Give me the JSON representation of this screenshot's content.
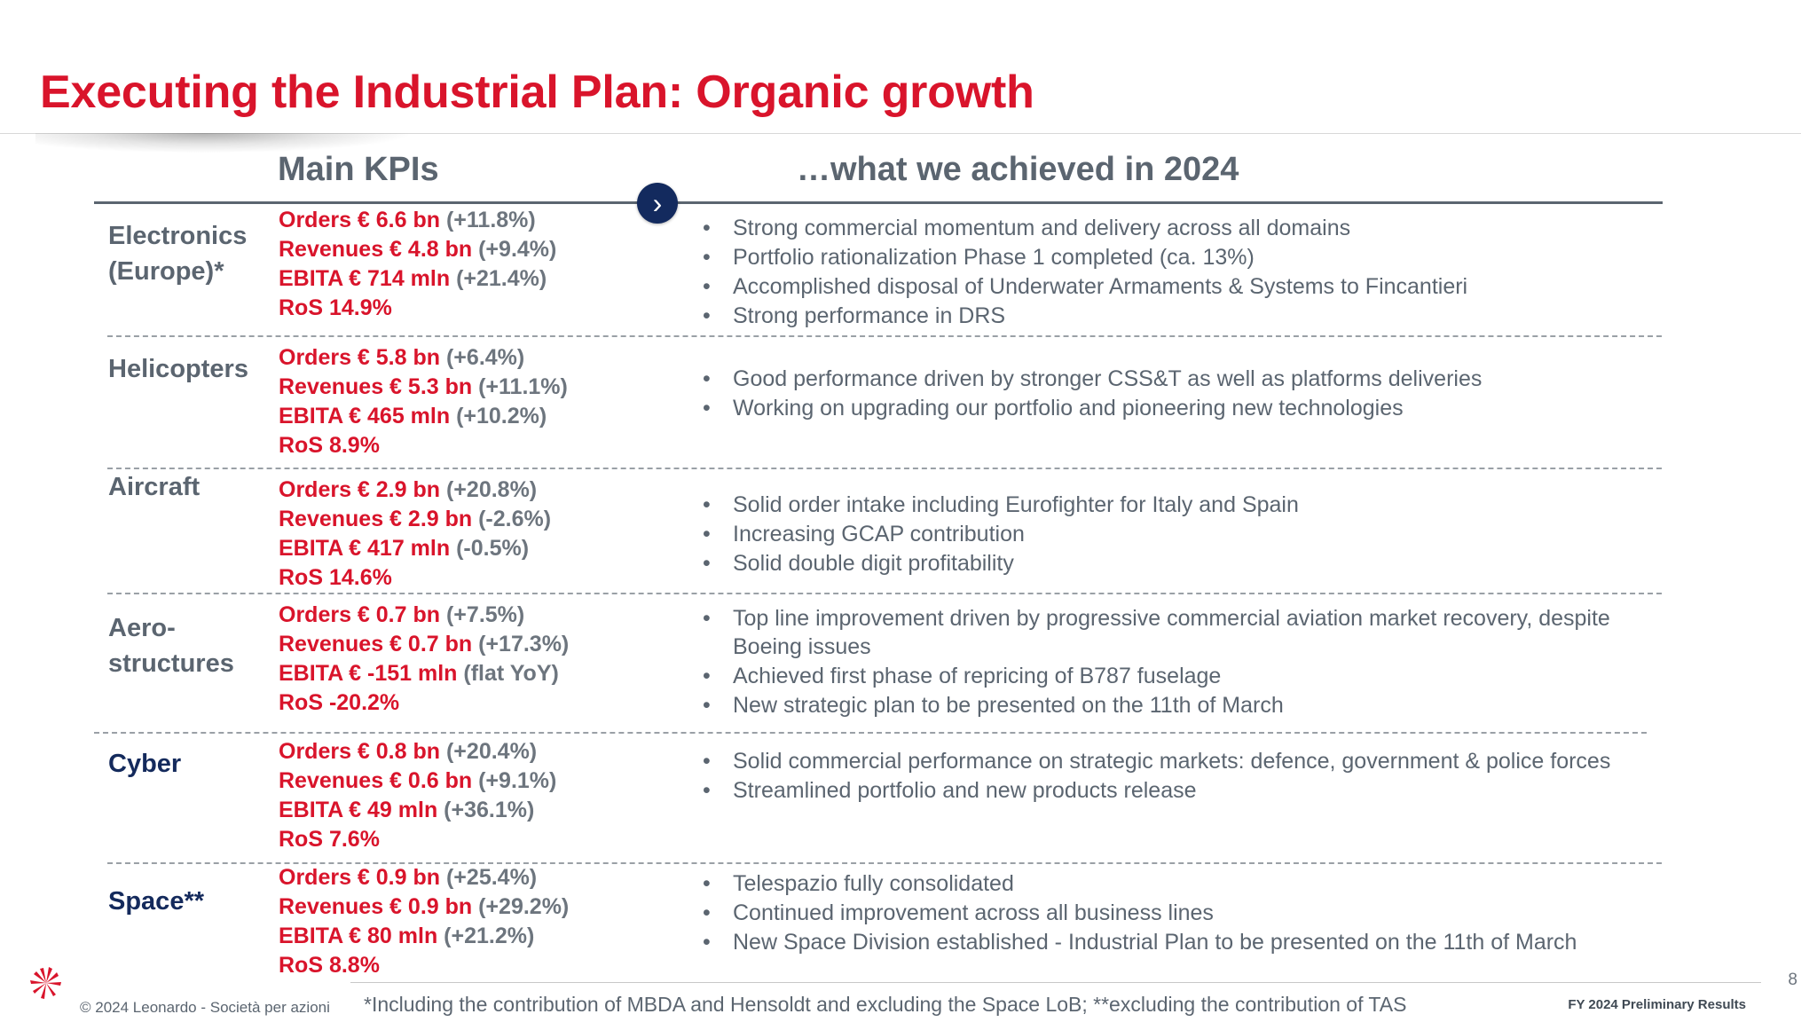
{
  "title": "Executing the Industrial Plan: Organic growth",
  "headers": {
    "kpis": "Main KPIs",
    "achievements": "…what we achieved in 2024"
  },
  "chevron": "›",
  "bullet_char": "•",
  "segments": [
    {
      "name": "Electronics\n(Europe)*",
      "kpis": [
        {
          "value": "Orders € 6.6 bn",
          "change": "(+11.8%)"
        },
        {
          "value": "Revenues € 4.8 bn",
          "change": "(+9.4%)"
        },
        {
          "value": "EBITA € 714 mln",
          "change": "(+21.4%)"
        },
        {
          "value": "RoS 14.9%",
          "change": ""
        }
      ],
      "bullets": [
        "Strong commercial momentum and delivery across all domains",
        "Portfolio rationalization Phase 1 completed (ca. 13%)",
        "Accomplished disposal of Underwater Armaments & Systems to Fincantieri",
        "Strong performance in DRS"
      ]
    },
    {
      "name": "Helicopters",
      "kpis": [
        {
          "value": "Orders € 5.8 bn",
          "change": "(+6.4%)"
        },
        {
          "value": "Revenues € 5.3 bn",
          "change": "(+11.1%)"
        },
        {
          "value": "EBITA € 465 mln",
          "change": "(+10.2%)"
        },
        {
          "value": "RoS 8.9%",
          "change": ""
        }
      ],
      "bullets": [
        "Good performance driven by stronger CSS&T as well as platforms deliveries",
        "Working on upgrading our portfolio and pioneering new technologies"
      ]
    },
    {
      "name": "Aircraft",
      "kpis": [
        {
          "value": "Orders € 2.9 bn",
          "change": "(+20.8%)"
        },
        {
          "value": "Revenues € 2.9 bn",
          "change": "(-2.6%)"
        },
        {
          "value": "EBITA € 417 mln",
          "change": "(-0.5%)"
        },
        {
          "value": "RoS 14.6%",
          "change": ""
        }
      ],
      "bullets": [
        "Solid order intake including Eurofighter for Italy and Spain",
        "Increasing GCAP contribution",
        "Solid double digit profitability"
      ]
    },
    {
      "name": "Aero-\nstructures",
      "kpis": [
        {
          "value": "Orders € 0.7 bn",
          "change": "(+7.5%)"
        },
        {
          "value": "Revenues € 0.7 bn",
          "change": "(+17.3%)"
        },
        {
          "value": "EBITA € -151 mln",
          "change": "(flat YoY)"
        },
        {
          "value": "RoS -20.2%",
          "change": ""
        }
      ],
      "bullets": [
        "Top line improvement driven by progressive commercial aviation market recovery, despite Boeing issues",
        "Achieved first phase of repricing of B787 fuselage",
        "New strategic plan to be presented on the 11th of March"
      ]
    },
    {
      "name": "Cyber",
      "kpis": [
        {
          "value": "Orders € 0.8 bn",
          "change": "(+20.4%)"
        },
        {
          "value": "Revenues € 0.6 bn",
          "change": "(+9.1%)"
        },
        {
          "value": "EBITA € 49 mln",
          "change": "(+36.1%)"
        },
        {
          "value": "RoS 7.6%",
          "change": ""
        }
      ],
      "bullets": [
        "Solid commercial performance on strategic markets: defence, government & police forces",
        "Streamlined portfolio and new products release"
      ]
    },
    {
      "name": "Space**",
      "kpis": [
        {
          "value": "Orders € 0.9 bn",
          "change": "(+25.4%)"
        },
        {
          "value": "Revenues € 0.9 bn",
          "change": "(+29.2%)"
        },
        {
          "value": "EBITA € 80 mln",
          "change": "(+21.2%)"
        },
        {
          "value": "RoS 8.8%",
          "change": ""
        }
      ],
      "bullets": [
        "Telespazio fully consolidated",
        "Continued improvement across all business lines",
        "New Space Division established - Industrial Plan to be presented on the 11th of March"
      ]
    }
  ],
  "footer": {
    "copyright": "© 2024 Leonardo - Società per azioni",
    "footnote": "*Including the contribution of MBDA and Hensoldt and excluding the Space LoB; **excluding the contribution of TAS",
    "doc_label": "FY 2024 Preliminary Results",
    "page_number": "8"
  },
  "colors": {
    "accent_red": "#d9142b",
    "text_gray": "#5b6570",
    "navy": "#142a5c"
  }
}
